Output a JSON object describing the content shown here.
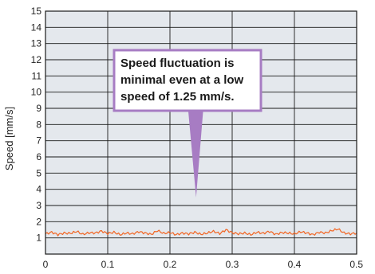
{
  "chart_data": {
    "type": "line",
    "title": "",
    "xlabel": "",
    "ylabel": "Speed [mm/s]",
    "xlim": [
      0,
      0.5
    ],
    "ylim": [
      0,
      15
    ],
    "x_ticks": [
      0,
      0.1,
      0.2,
      0.3,
      0.4,
      0.5
    ],
    "x_tick_labels": [
      "0",
      "0.1",
      "0.2",
      "0.3",
      "0.4",
      "0.5"
    ],
    "y_ticks": [
      1,
      2,
      3,
      4,
      5,
      6,
      7,
      8,
      9,
      10,
      11,
      12,
      13,
      14,
      15
    ],
    "y_tick_labels": [
      "1",
      "2",
      "3",
      "4",
      "5",
      "6",
      "7",
      "8",
      "9",
      "10",
      "11",
      "12",
      "13",
      "14",
      "15"
    ],
    "grid": true,
    "series": [
      {
        "color": "#f26522",
        "x": [
          0,
          0.01,
          0.02,
          0.03,
          0.04,
          0.05,
          0.06,
          0.07,
          0.08,
          0.09,
          0.1,
          0.11,
          0.12,
          0.13,
          0.14,
          0.15,
          0.16,
          0.17,
          0.18,
          0.19,
          0.2,
          0.21,
          0.22,
          0.23,
          0.24,
          0.25,
          0.26,
          0.27,
          0.28,
          0.29,
          0.3,
          0.31,
          0.32,
          0.33,
          0.34,
          0.35,
          0.36,
          0.37,
          0.38,
          0.39,
          0.4,
          0.41,
          0.42,
          0.43,
          0.44,
          0.45,
          0.46,
          0.47,
          0.48,
          0.49,
          0.5
        ],
        "y": [
          1.25,
          1.35,
          1.2,
          1.3,
          1.28,
          1.4,
          1.22,
          1.32,
          1.3,
          1.42,
          1.27,
          1.35,
          1.2,
          1.3,
          1.25,
          1.38,
          1.3,
          1.22,
          1.45,
          1.28,
          1.33,
          1.2,
          1.3,
          1.25,
          1.35,
          1.22,
          1.3,
          1.4,
          1.27,
          1.5,
          1.32,
          1.25,
          1.3,
          1.2,
          1.35,
          1.28,
          1.4,
          1.22,
          1.33,
          1.3,
          1.25,
          1.38,
          1.3,
          1.2,
          1.35,
          1.3,
          1.45,
          1.55,
          1.3,
          1.25,
          1.3
        ]
      }
    ],
    "annotation": {
      "lines": [
        "Speed fluctuation is",
        "minimal even at a low",
        "speed of 1.25 mm/s."
      ],
      "pointer_x": 0.242,
      "pointer_y": 3.5,
      "border_color": "#a77cc3",
      "fill_color": "#ffffff"
    },
    "colors": {
      "plot_background": "#e4e8ed",
      "grid_line": "#1a1a1a",
      "axis_line": "#1a1a1a"
    }
  }
}
